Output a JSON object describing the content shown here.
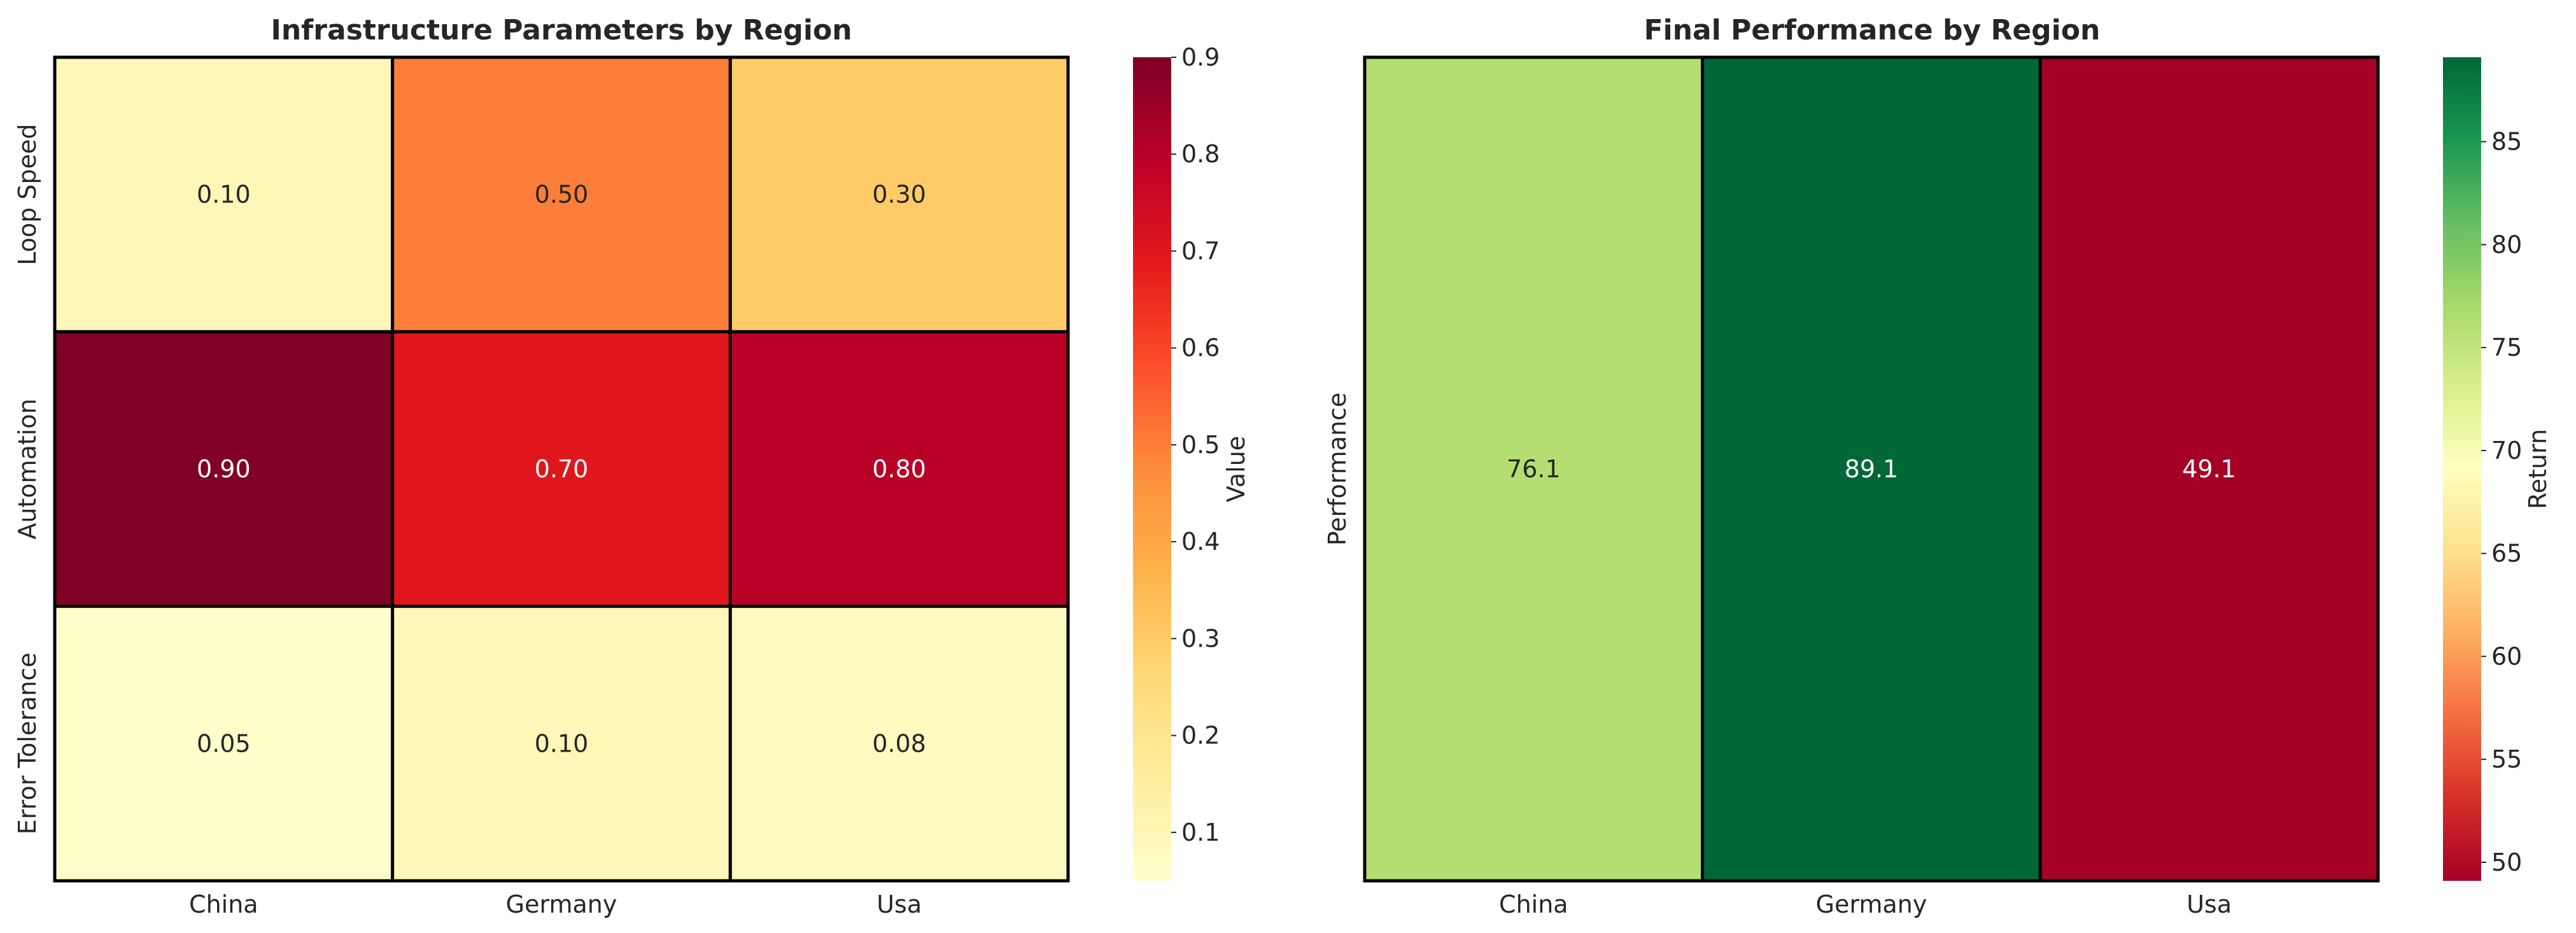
{
  "chart_data": [
    {
      "type": "heatmap",
      "title": "Infrastructure Parameters by Region",
      "x_categories": [
        "China",
        "Germany",
        "Usa"
      ],
      "y_categories": [
        "Loop Speed",
        "Automation",
        "Error Tolerance"
      ],
      "values": [
        [
          0.1,
          0.5,
          0.3
        ],
        [
          0.9,
          0.7,
          0.8
        ],
        [
          0.05,
          0.1,
          0.08
        ]
      ],
      "annotations": [
        [
          "0.10",
          "0.50",
          "0.30"
        ],
        [
          "0.90",
          "0.70",
          "0.80"
        ],
        [
          "0.05",
          "0.10",
          "0.08"
        ]
      ],
      "colormap": "YlOrRd",
      "colorbar": {
        "label": "Value",
        "range": [
          0.05,
          0.9
        ],
        "ticks": [
          "0.1",
          "0.2",
          "0.3",
          "0.4",
          "0.5",
          "0.6",
          "0.7",
          "0.8",
          "0.9"
        ]
      }
    },
    {
      "type": "heatmap",
      "title": "Final Performance by Region",
      "x_categories": [
        "China",
        "Germany",
        "Usa"
      ],
      "y_categories": [
        "Performance"
      ],
      "values": [
        [
          76.1,
          89.1,
          49.1
        ]
      ],
      "annotations": [
        [
          "76.1",
          "89.1",
          "49.1"
        ]
      ],
      "colormap": "RdYlGn",
      "colorbar": {
        "label": "Return",
        "range": [
          49.1,
          89.1
        ],
        "ticks": [
          "50",
          "55",
          "60",
          "65",
          "70",
          "75",
          "80",
          "85"
        ]
      }
    }
  ]
}
